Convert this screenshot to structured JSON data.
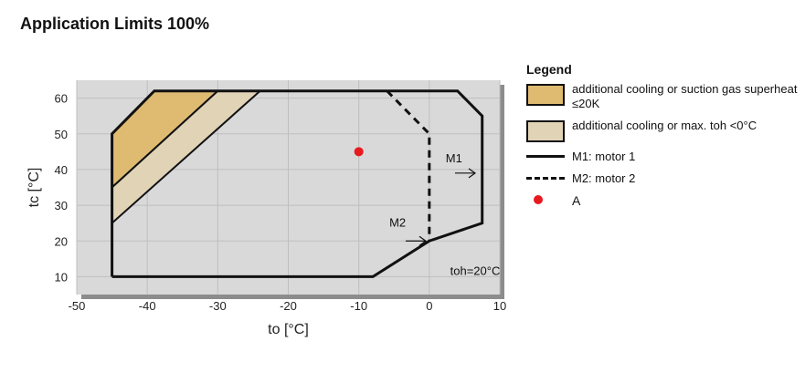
{
  "page": {
    "title": "Application Limits 100%"
  },
  "chart_data": {
    "type": "area",
    "title": "Application Limits 100%",
    "xlabel": "to [°C]",
    "ylabel": "tc [°C]",
    "xlim": [
      -50,
      10
    ],
    "ylim": [
      5,
      65
    ],
    "xticks": [
      -50,
      -40,
      -30,
      -20,
      -10,
      0,
      10
    ],
    "yticks": [
      10,
      20,
      30,
      40,
      50,
      60
    ],
    "grid": true,
    "legend_position": "right",
    "series": [
      {
        "name": "M1: motor 1",
        "style": "solid",
        "points": [
          [
            -45,
            10
          ],
          [
            -8,
            10
          ],
          [
            0,
            20
          ],
          [
            7.5,
            25
          ],
          [
            7.5,
            55
          ],
          [
            4,
            62
          ],
          [
            -39,
            62
          ],
          [
            -45,
            50
          ],
          [
            -45,
            10
          ]
        ]
      },
      {
        "name": "M2: motor 2",
        "style": "dashed",
        "points": [
          [
            -6,
            62
          ],
          [
            0,
            50
          ],
          [
            0,
            20
          ]
        ]
      }
    ],
    "regions": [
      {
        "name": "additional cooling or suction gas superheat ≤20K",
        "color": "#dfbb72",
        "points": [
          [
            -45,
            35
          ],
          [
            -45,
            50
          ],
          [
            -39,
            62
          ],
          [
            -30,
            62
          ]
        ]
      },
      {
        "name": "additional cooling or max. toh <0°C",
        "color": "#e1d3b6",
        "points": [
          [
            -45,
            25
          ],
          [
            -45,
            35
          ],
          [
            -30,
            62
          ],
          [
            -24,
            62
          ]
        ]
      }
    ],
    "markers": [
      {
        "name": "A",
        "x": -10,
        "y": 45,
        "color": "#e8191f"
      }
    ],
    "annotations": [
      {
        "text": "M1",
        "x": 3.5,
        "y": 42,
        "arrow_to": [
          6.5,
          39
        ]
      },
      {
        "text": "M2",
        "x": -4.5,
        "y": 24,
        "arrow_to": [
          -0.5,
          20
        ]
      },
      {
        "text": "toh=20°C",
        "x": 6.5,
        "y": 10.5
      }
    ]
  },
  "legend": {
    "title": "Legend",
    "items": [
      {
        "label": "additional cooling or suction gas superheat ≤20K"
      },
      {
        "label": "additional cooling or max. toh <0°C"
      },
      {
        "label": "M1: motor 1"
      },
      {
        "label": "M2: motor 2"
      },
      {
        "label": "A"
      }
    ]
  },
  "colors": {
    "plot_bg": "#d9d9d9",
    "grid": "#bfbfbf",
    "region1": "#dfbb72",
    "region2": "#e1d3b6",
    "marker": "#e8191f"
  }
}
